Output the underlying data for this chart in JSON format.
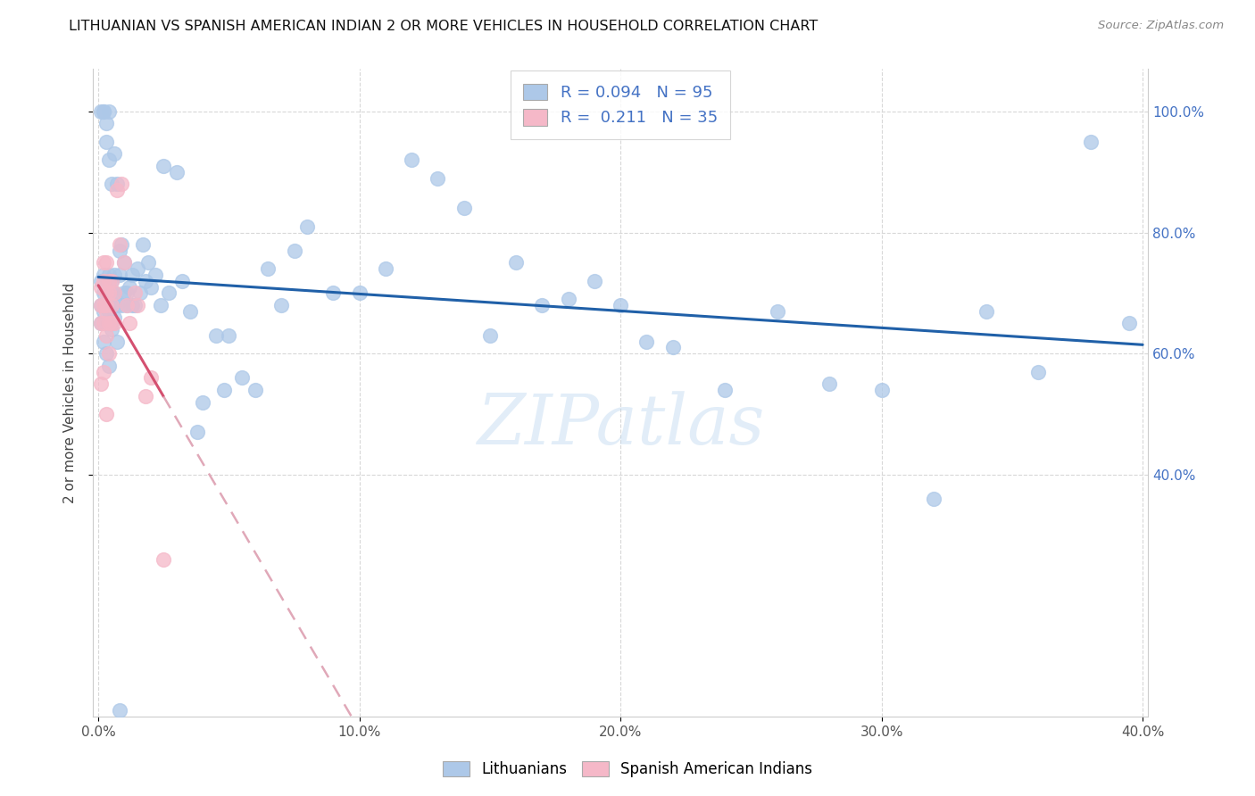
{
  "title": "LITHUANIAN VS SPANISH AMERICAN INDIAN 2 OR MORE VEHICLES IN HOUSEHOLD CORRELATION CHART",
  "source": "Source: ZipAtlas.com",
  "ylabel_label": "2 or more Vehicles in Household",
  "legend_labels": [
    "Lithuanians",
    "Spanish American Indians"
  ],
  "blue_R": 0.094,
  "blue_N": 95,
  "pink_R": 0.211,
  "pink_N": 35,
  "blue_color": "#adc8e8",
  "pink_color": "#f5b8c8",
  "blue_line_color": "#2060a8",
  "pink_line_color": "#d45070",
  "pink_dash_color": "#e0a8b8",
  "watermark": "ZIPatlas",
  "x_min": 0.0,
  "x_max": 0.4,
  "y_min": 0.0,
  "y_max": 1.07,
  "x_ticks": [
    0.0,
    0.1,
    0.2,
    0.3,
    0.4
  ],
  "y_ticks": [
    0.4,
    0.6,
    0.8,
    1.0
  ],
  "blue_x": [
    0.001,
    0.001,
    0.001,
    0.002,
    0.002,
    0.002,
    0.002,
    0.003,
    0.003,
    0.003,
    0.003,
    0.004,
    0.004,
    0.004,
    0.004,
    0.005,
    0.005,
    0.005,
    0.005,
    0.005,
    0.006,
    0.006,
    0.006,
    0.007,
    0.007,
    0.008,
    0.008,
    0.009,
    0.009,
    0.01,
    0.01,
    0.011,
    0.011,
    0.012,
    0.013,
    0.013,
    0.014,
    0.015,
    0.016,
    0.017,
    0.018,
    0.019,
    0.02,
    0.022,
    0.024,
    0.025,
    0.027,
    0.03,
    0.032,
    0.035,
    0.038,
    0.04,
    0.045,
    0.048,
    0.05,
    0.055,
    0.06,
    0.065,
    0.07,
    0.075,
    0.08,
    0.09,
    0.1,
    0.11,
    0.12,
    0.13,
    0.14,
    0.15,
    0.16,
    0.17,
    0.18,
    0.19,
    0.2,
    0.21,
    0.22,
    0.24,
    0.26,
    0.28,
    0.3,
    0.32,
    0.34,
    0.36,
    0.38,
    0.395,
    0.001,
    0.002,
    0.003,
    0.004,
    0.002,
    0.003,
    0.004,
    0.005,
    0.006,
    0.007,
    0.008
  ],
  "blue_y": [
    0.68,
    0.72,
    0.65,
    0.7,
    0.67,
    0.73,
    0.62,
    0.68,
    0.71,
    0.65,
    0.6,
    0.69,
    0.73,
    0.67,
    0.58,
    0.7,
    0.64,
    0.68,
    0.72,
    0.65,
    0.7,
    0.73,
    0.66,
    0.68,
    0.62,
    0.73,
    0.77,
    0.78,
    0.68,
    0.7,
    0.75,
    0.7,
    0.68,
    0.71,
    0.73,
    0.68,
    0.68,
    0.74,
    0.7,
    0.78,
    0.72,
    0.75,
    0.71,
    0.73,
    0.68,
    0.91,
    0.7,
    0.9,
    0.72,
    0.67,
    0.47,
    0.52,
    0.63,
    0.54,
    0.63,
    0.56,
    0.54,
    0.74,
    0.68,
    0.77,
    0.81,
    0.7,
    0.7,
    0.74,
    0.92,
    0.89,
    0.84,
    0.63,
    0.75,
    0.68,
    0.69,
    0.72,
    0.68,
    0.62,
    0.61,
    0.54,
    0.67,
    0.55,
    0.54,
    0.36,
    0.67,
    0.57,
    0.95,
    0.65,
    1.0,
    1.0,
    0.95,
    1.0,
    1.0,
    0.98,
    0.92,
    0.88,
    0.93,
    0.88,
    0.01
  ],
  "pink_x": [
    0.001,
    0.001,
    0.001,
    0.001,
    0.002,
    0.002,
    0.002,
    0.002,
    0.002,
    0.003,
    0.003,
    0.003,
    0.003,
    0.003,
    0.003,
    0.004,
    0.004,
    0.004,
    0.004,
    0.005,
    0.005,
    0.005,
    0.006,
    0.006,
    0.007,
    0.008,
    0.009,
    0.01,
    0.011,
    0.012,
    0.014,
    0.015,
    0.018,
    0.02,
    0.025
  ],
  "pink_y": [
    0.68,
    0.71,
    0.55,
    0.65,
    0.68,
    0.72,
    0.65,
    0.57,
    0.75,
    0.7,
    0.67,
    0.63,
    0.75,
    0.5,
    0.68,
    0.7,
    0.65,
    0.6,
    0.72,
    0.68,
    0.72,
    0.65,
    0.7,
    0.65,
    0.87,
    0.78,
    0.88,
    0.75,
    0.68,
    0.65,
    0.7,
    0.68,
    0.53,
    0.56,
    0.26
  ]
}
